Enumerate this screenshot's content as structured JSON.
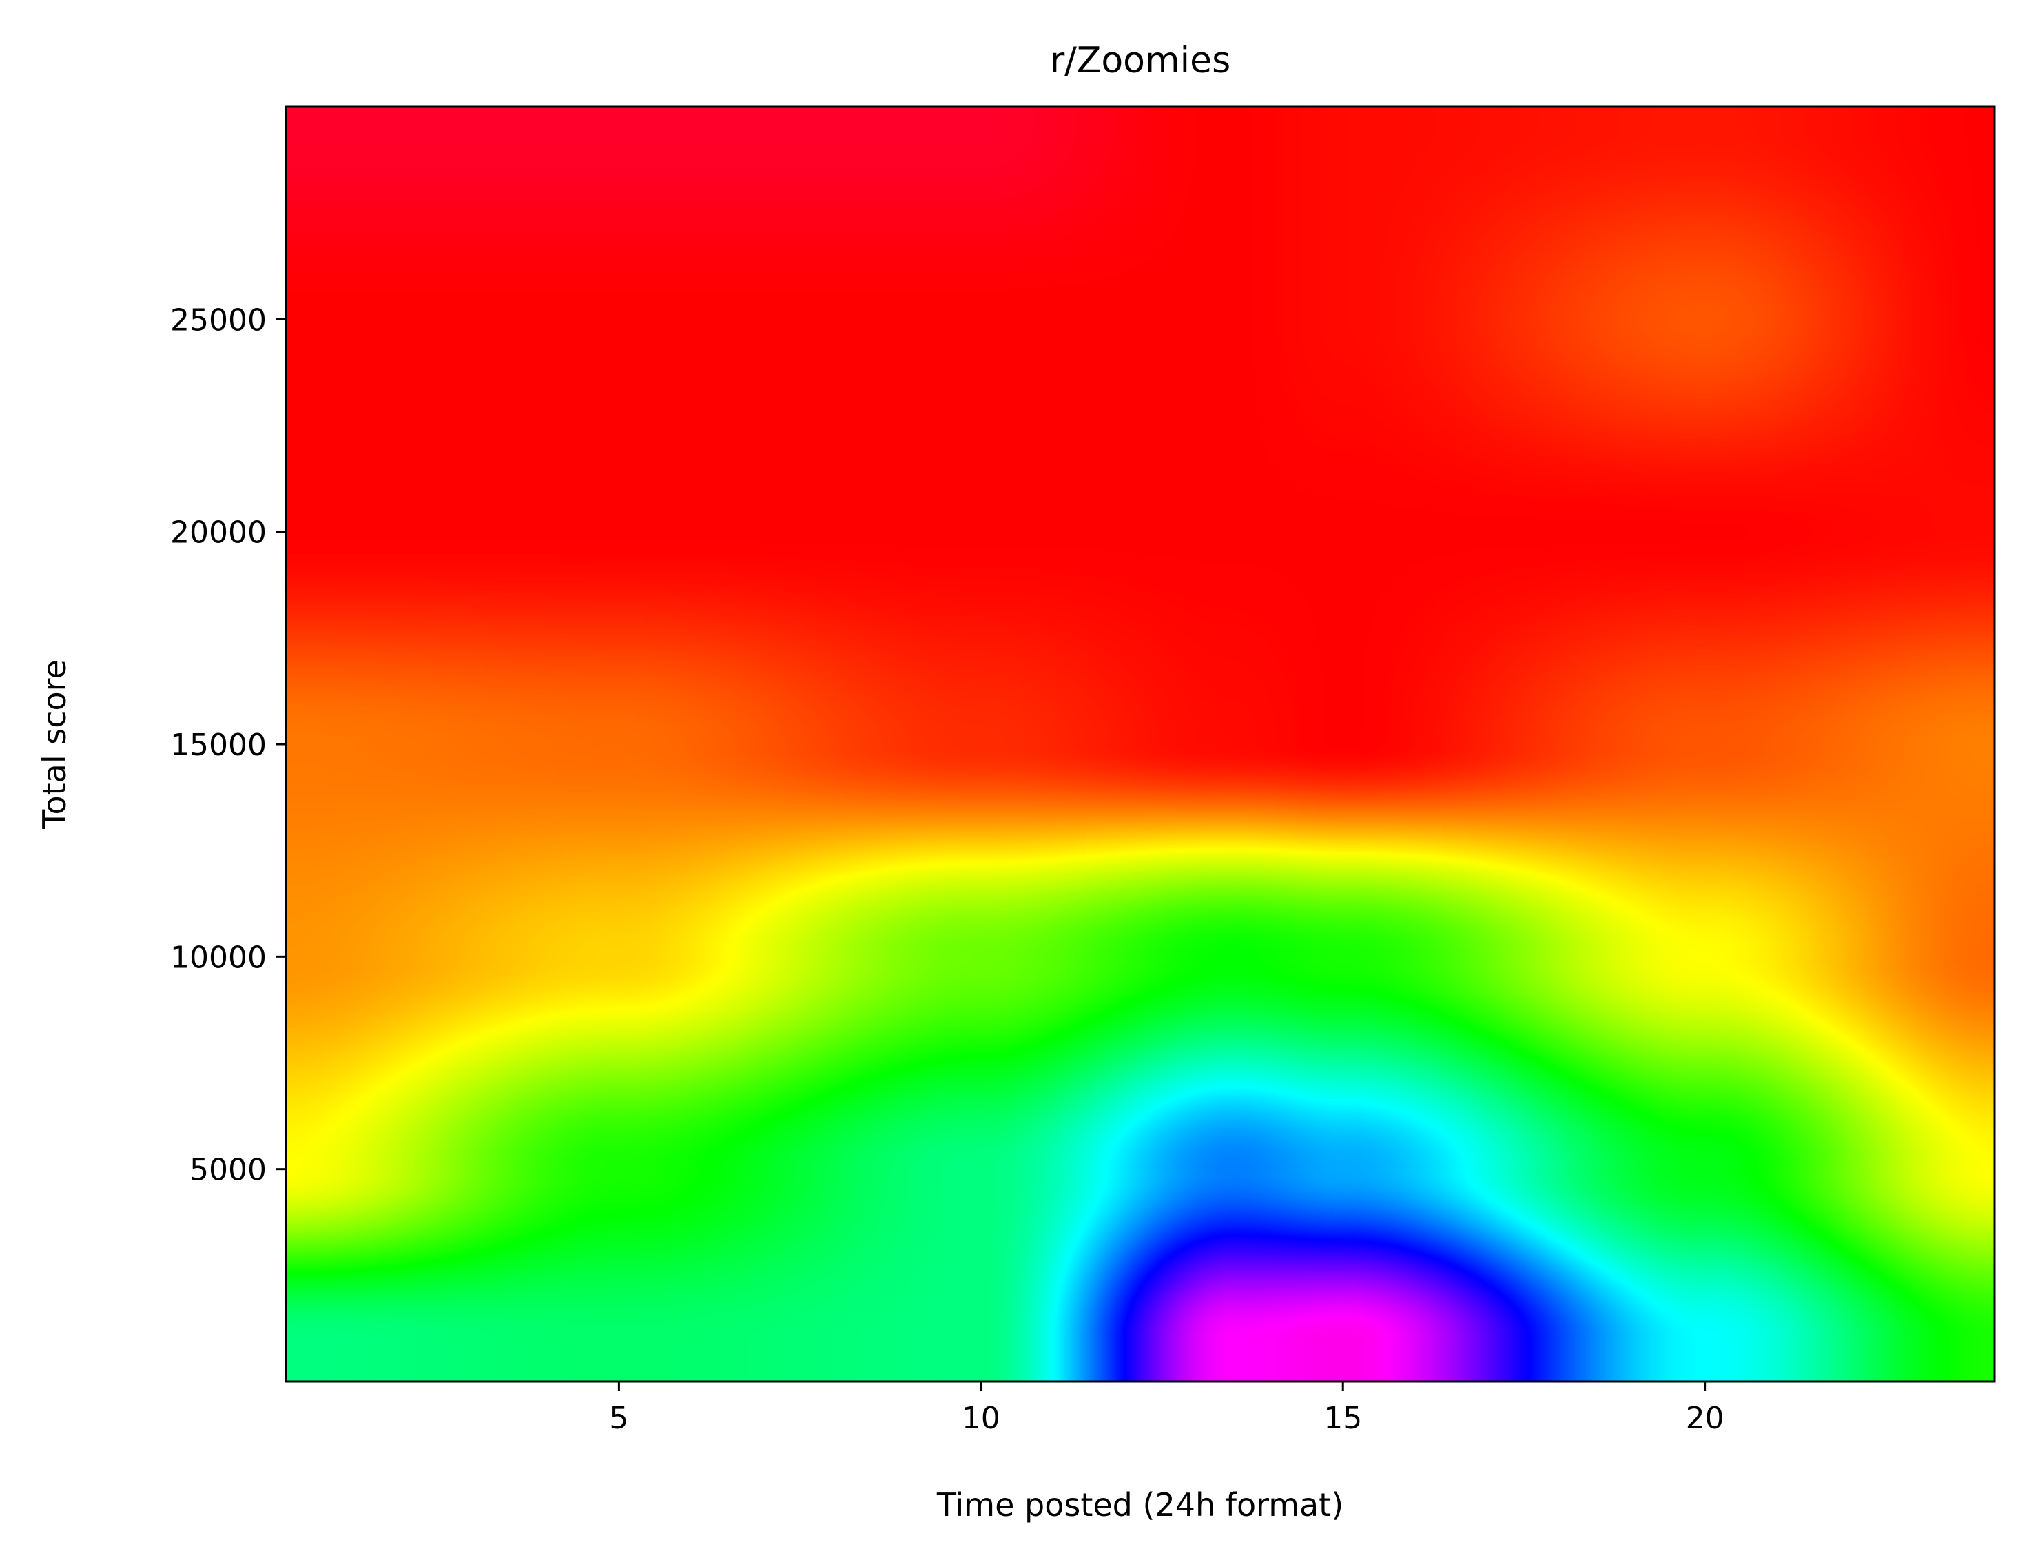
{
  "chart_data": {
    "type": "heatmap",
    "title": "r/Zoomies",
    "xlabel": "Time posted (24h format)",
    "ylabel": "Total score",
    "xlim": [
      0.4,
      24
    ],
    "ylim": [
      0,
      30000
    ],
    "x_ticks": [
      5,
      10,
      15,
      20
    ],
    "y_ticks": [
      5000,
      10000,
      15000,
      20000,
      25000
    ],
    "colormap": "hsv",
    "color_stops": [
      "#ff0033",
      "#ff0000",
      "#ff5500",
      "#ffaa00",
      "#ffff00",
      "#00ff00",
      "#00ffff",
      "#0000ff",
      "#ff00dd"
    ],
    "legend": "none",
    "grid": false,
    "surface_samples": {
      "x": [
        0.4,
        5,
        10,
        13.5,
        15,
        20,
        24
      ],
      "y": [
        1000,
        5000,
        10000,
        15000,
        20000,
        25000,
        29500
      ],
      "hue": [
        [
          150,
          145,
          150,
          300,
          305,
          180,
          115
        ],
        [
          60,
          115,
          150,
          210,
          200,
          125,
          60
        ],
        [
          35,
          50,
          95,
          120,
          115,
          60,
          25
        ],
        [
          28,
          25,
          10,
          2,
          0,
          20,
          30
        ],
        [
          0,
          0,
          0,
          0,
          0,
          0,
          2
        ],
        [
          0,
          0,
          0,
          0,
          2,
          20,
          0
        ],
        [
          -10,
          -10,
          -10,
          0,
          2,
          5,
          0
        ]
      ]
    }
  }
}
